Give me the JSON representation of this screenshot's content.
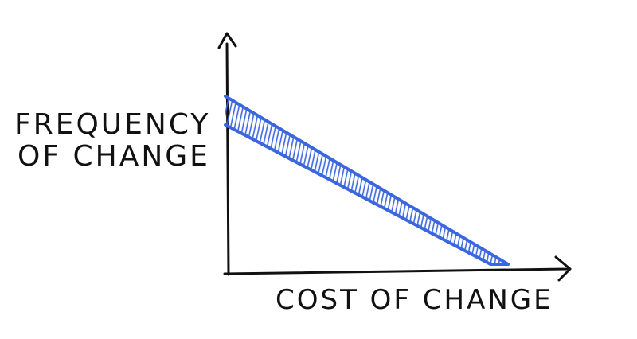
{
  "chart_data": {
    "type": "area",
    "title": "",
    "xlabel": "COST OF CHANGE",
    "ylabel_lines": [
      "FREQUENCY",
      "OF CHANGE"
    ],
    "x": [
      0,
      1
    ],
    "band_upper": [
      1,
      0
    ],
    "band_lower": [
      0.83,
      0
    ],
    "xlim": [
      0,
      1
    ],
    "ylim": [
      0,
      1
    ],
    "grid": false,
    "legend": "none",
    "axis_color": "#111111",
    "band_color": "#3a66e0"
  }
}
